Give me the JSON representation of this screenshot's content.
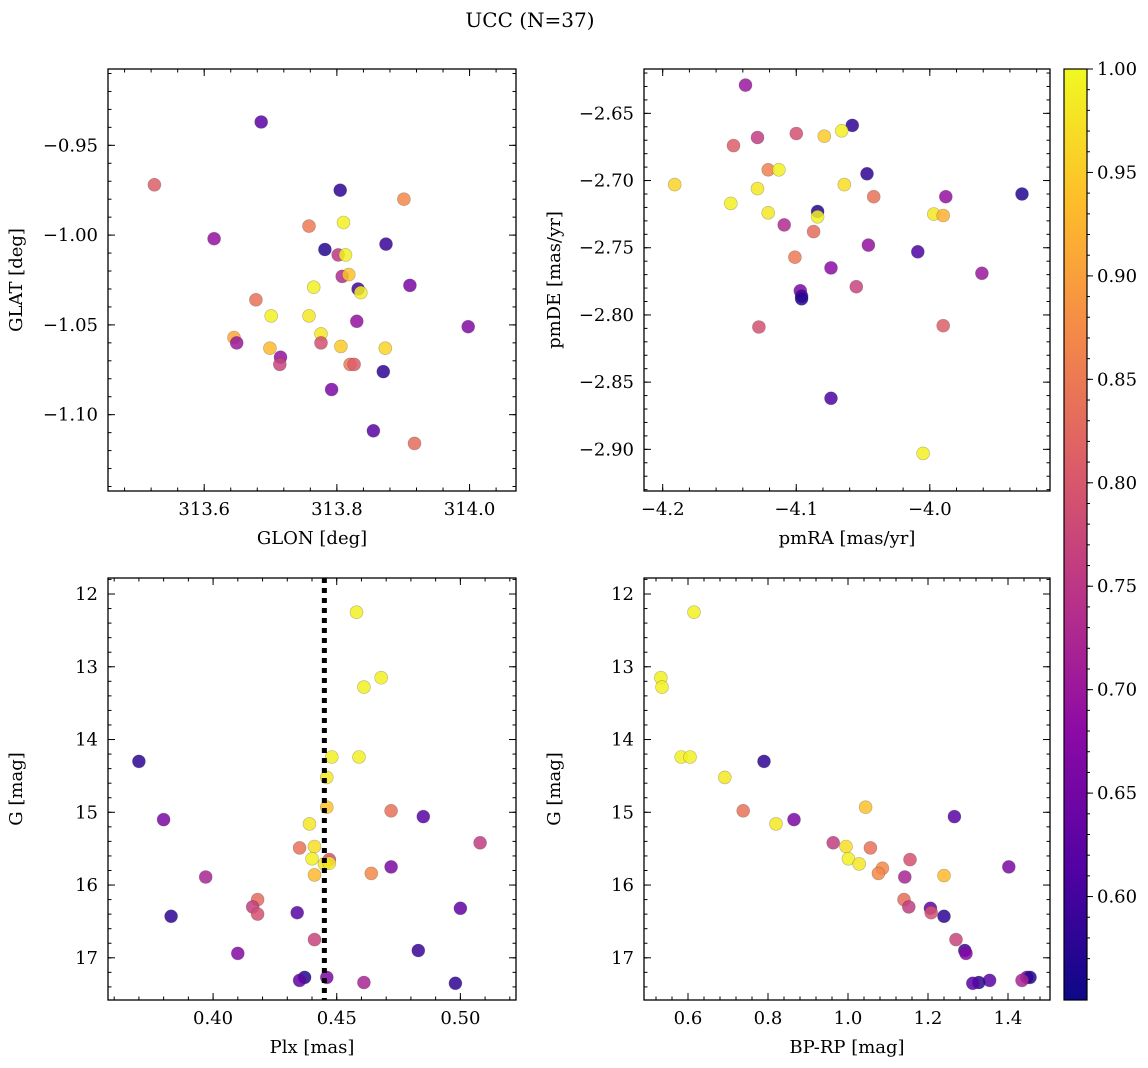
{
  "figure_title": "UCC (N=37)",
  "colormap": [
    "#0d0887",
    "#5302a3",
    "#8b0aa5",
    "#b83289",
    "#db5c68",
    "#f48849",
    "#febd2a",
    "#f0f921"
  ],
  "chart_data": [
    {
      "id": "glon-glat",
      "type": "scatter",
      "xlabel": "GLON [deg]",
      "ylabel": "GLAT [deg]",
      "xlim": [
        313.455,
        314.07
      ],
      "ylim": [
        -1.1425,
        -0.9075
      ],
      "y_inverted": false,
      "xticks": [
        313.6,
        313.8,
        314.0
      ],
      "xtick_labels": [
        "313.6",
        "313.8",
        "314.0"
      ],
      "yticks": [
        -0.95,
        -1.0,
        -1.05,
        -1.1
      ],
      "ytick_labels": [
        "−0.95",
        "−1.00",
        "−1.05",
        "−1.10"
      ],
      "points": [
        {
          "x": 313.686,
          "y": -0.937,
          "c": 0.62
        },
        {
          "x": 313.525,
          "y": -0.972,
          "c": 0.81
        },
        {
          "x": 313.805,
          "y": -0.975,
          "c": 0.58
        },
        {
          "x": 313.901,
          "y": -0.98,
          "c": 0.87
        },
        {
          "x": 313.758,
          "y": -0.995,
          "c": 0.85
        },
        {
          "x": 313.81,
          "y": -0.993,
          "c": 0.99
        },
        {
          "x": 313.615,
          "y": -1.002,
          "c": 0.69
        },
        {
          "x": 313.782,
          "y": -1.008,
          "c": 0.57
        },
        {
          "x": 313.874,
          "y": -1.005,
          "c": 0.59
        },
        {
          "x": 313.802,
          "y": -1.011,
          "c": 0.75
        },
        {
          "x": 313.813,
          "y": -1.011,
          "c": 0.99
        },
        {
          "x": 313.808,
          "y": -1.023,
          "c": 0.73
        },
        {
          "x": 313.818,
          "y": -1.022,
          "c": 0.94
        },
        {
          "x": 313.765,
          "y": -1.029,
          "c": 0.99
        },
        {
          "x": 313.832,
          "y": -1.03,
          "c": 0.6
        },
        {
          "x": 313.836,
          "y": -1.032,
          "c": 0.99
        },
        {
          "x": 313.91,
          "y": -1.028,
          "c": 0.66
        },
        {
          "x": 313.678,
          "y": -1.036,
          "c": 0.84
        },
        {
          "x": 313.701,
          "y": -1.045,
          "c": 0.99
        },
        {
          "x": 313.758,
          "y": -1.045,
          "c": 0.98
        },
        {
          "x": 313.83,
          "y": -1.048,
          "c": 0.69
        },
        {
          "x": 313.998,
          "y": -1.051,
          "c": 0.67
        },
        {
          "x": 313.776,
          "y": -1.055,
          "c": 0.98
        },
        {
          "x": 313.645,
          "y": -1.057,
          "c": 0.91
        },
        {
          "x": 313.649,
          "y": -1.06,
          "c": 0.7
        },
        {
          "x": 313.776,
          "y": -1.06,
          "c": 0.79
        },
        {
          "x": 313.806,
          "y": -1.062,
          "c": 0.95
        },
        {
          "x": 313.699,
          "y": -1.063,
          "c": 0.93
        },
        {
          "x": 313.873,
          "y": -1.063,
          "c": 0.96
        },
        {
          "x": 313.715,
          "y": -1.068,
          "c": 0.69
        },
        {
          "x": 313.714,
          "y": -1.072,
          "c": 0.77
        },
        {
          "x": 313.82,
          "y": -1.072,
          "c": 0.85
        },
        {
          "x": 313.826,
          "y": -1.072,
          "c": 0.81
        },
        {
          "x": 313.87,
          "y": -1.076,
          "c": 0.58
        },
        {
          "x": 313.792,
          "y": -1.086,
          "c": 0.66
        },
        {
          "x": 313.855,
          "y": -1.109,
          "c": 0.62
        },
        {
          "x": 313.917,
          "y": -1.116,
          "c": 0.83
        }
      ]
    },
    {
      "id": "pm",
      "type": "scatter",
      "xlabel": "pmRA [mas/yr]",
      "ylabel": "pmDE [mas/yr]",
      "xlim": [
        -4.214,
        -3.91
      ],
      "ylim": [
        -2.931,
        -2.617
      ],
      "y_inverted": false,
      "xticks": [
        -4.2,
        -4.1,
        -4.0
      ],
      "xtick_labels": [
        "−4.2",
        "−4.1",
        "−4.0"
      ],
      "yticks": [
        -2.65,
        -2.7,
        -2.75,
        -2.8,
        -2.85,
        -2.9
      ],
      "ytick_labels": [
        "−2.65",
        "−2.70",
        "−2.75",
        "−2.80",
        "−2.85",
        "−2.90"
      ],
      "points": [
        {
          "x": -4.138,
          "y": -2.629,
          "c": 0.7
        },
        {
          "x": -4.058,
          "y": -2.659,
          "c": 0.58
        },
        {
          "x": -4.066,
          "y": -2.663,
          "c": 0.99
        },
        {
          "x": -4.079,
          "y": -2.667,
          "c": 0.95
        },
        {
          "x": -4.1,
          "y": -2.665,
          "c": 0.79
        },
        {
          "x": -4.129,
          "y": -2.668,
          "c": 0.76
        },
        {
          "x": -4.147,
          "y": -2.674,
          "c": 0.81
        },
        {
          "x": -4.121,
          "y": -2.692,
          "c": 0.86
        },
        {
          "x": -4.113,
          "y": -2.692,
          "c": 0.99
        },
        {
          "x": -4.047,
          "y": -2.695,
          "c": 0.58
        },
        {
          "x": -4.191,
          "y": -2.703,
          "c": 0.96
        },
        {
          "x": -4.064,
          "y": -2.703,
          "c": 0.97
        },
        {
          "x": -4.129,
          "y": -2.706,
          "c": 0.98
        },
        {
          "x": -3.931,
          "y": -2.71,
          "c": 0.57
        },
        {
          "x": -4.042,
          "y": -2.712,
          "c": 0.84
        },
        {
          "x": -3.988,
          "y": -2.712,
          "c": 0.69
        },
        {
          "x": -4.149,
          "y": -2.717,
          "c": 0.99
        },
        {
          "x": -4.084,
          "y": -2.723,
          "c": 0.57
        },
        {
          "x": -4.121,
          "y": -2.724,
          "c": 0.98
        },
        {
          "x": -3.997,
          "y": -2.725,
          "c": 0.98
        },
        {
          "x": -3.99,
          "y": -2.726,
          "c": 0.92
        },
        {
          "x": -4.084,
          "y": -2.727,
          "c": 0.99
        },
        {
          "x": -4.109,
          "y": -2.733,
          "c": 0.73
        },
        {
          "x": -4.087,
          "y": -2.738,
          "c": 0.83
        },
        {
          "x": -4.046,
          "y": -2.748,
          "c": 0.69
        },
        {
          "x": -4.009,
          "y": -2.753,
          "c": 0.61
        },
        {
          "x": -4.101,
          "y": -2.757,
          "c": 0.85
        },
        {
          "x": -4.074,
          "y": -2.765,
          "c": 0.68
        },
        {
          "x": -3.961,
          "y": -2.769,
          "c": 0.7
        },
        {
          "x": -4.055,
          "y": -2.779,
          "c": 0.77
        },
        {
          "x": -4.097,
          "y": -2.782,
          "c": 0.66
        },
        {
          "x": -4.096,
          "y": -2.786,
          "c": 0.6
        },
        {
          "x": -4.096,
          "y": -2.788,
          "c": 0.57
        },
        {
          "x": -4.128,
          "y": -2.809,
          "c": 0.79
        },
        {
          "x": -3.99,
          "y": -2.808,
          "c": 0.81
        },
        {
          "x": -4.074,
          "y": -2.862,
          "c": 0.61
        },
        {
          "x": -4.005,
          "y": -2.903,
          "c": 0.99
        }
      ]
    },
    {
      "id": "plx-g",
      "type": "scatter",
      "xlabel": "Plx [mas]",
      "ylabel": "G [mag]",
      "xlim": [
        0.3575,
        0.5225
      ],
      "ylim": [
        17.58,
        11.78
      ],
      "y_inverted": true,
      "xticks": [
        0.4,
        0.45,
        0.5
      ],
      "xtick_labels": [
        "0.40",
        "0.45",
        "0.50"
      ],
      "yticks": [
        12,
        13,
        14,
        15,
        16,
        17
      ],
      "ytick_labels": [
        "12",
        "13",
        "14",
        "15",
        "16",
        "17"
      ],
      "vline": {
        "x": 0.445,
        "style": "dotted",
        "color": "#000000"
      },
      "points": [
        {
          "x": 0.458,
          "y": 12.25,
          "c": 0.99
        },
        {
          "x": 0.468,
          "y": 13.15,
          "c": 0.99
        },
        {
          "x": 0.461,
          "y": 13.28,
          "c": 0.99
        },
        {
          "x": 0.37,
          "y": 14.3,
          "c": 0.58
        },
        {
          "x": 0.448,
          "y": 14.24,
          "c": 0.99
        },
        {
          "x": 0.459,
          "y": 14.24,
          "c": 0.99
        },
        {
          "x": 0.446,
          "y": 14.52,
          "c": 0.98
        },
        {
          "x": 0.446,
          "y": 14.93,
          "c": 0.94
        },
        {
          "x": 0.472,
          "y": 14.98,
          "c": 0.84
        },
        {
          "x": 0.485,
          "y": 15.06,
          "c": 0.62
        },
        {
          "x": 0.38,
          "y": 15.1,
          "c": 0.66
        },
        {
          "x": 0.439,
          "y": 15.16,
          "c": 0.98
        },
        {
          "x": 0.508,
          "y": 15.42,
          "c": 0.76
        },
        {
          "x": 0.441,
          "y": 15.47,
          "c": 0.97
        },
        {
          "x": 0.435,
          "y": 15.49,
          "c": 0.84
        },
        {
          "x": 0.44,
          "y": 15.64,
          "c": 0.99
        },
        {
          "x": 0.447,
          "y": 15.65,
          "c": 0.79
        },
        {
          "x": 0.445,
          "y": 15.71,
          "c": 0.98
        },
        {
          "x": 0.472,
          "y": 15.75,
          "c": 0.66
        },
        {
          "x": 0.464,
          "y": 15.84,
          "c": 0.87
        },
        {
          "x": 0.441,
          "y": 15.86,
          "c": 0.93
        },
        {
          "x": 0.397,
          "y": 15.89,
          "c": 0.72
        },
        {
          "x": 0.418,
          "y": 16.2,
          "c": 0.83
        },
        {
          "x": 0.416,
          "y": 16.3,
          "c": 0.76
        },
        {
          "x": 0.5,
          "y": 16.32,
          "c": 0.63
        },
        {
          "x": 0.434,
          "y": 16.38,
          "c": 0.62
        },
        {
          "x": 0.418,
          "y": 16.4,
          "c": 0.79
        },
        {
          "x": 0.383,
          "y": 16.43,
          "c": 0.58
        },
        {
          "x": 0.441,
          "y": 16.75,
          "c": 0.77
        },
        {
          "x": 0.483,
          "y": 16.9,
          "c": 0.59
        },
        {
          "x": 0.41,
          "y": 16.94,
          "c": 0.67
        },
        {
          "x": 0.437,
          "y": 17.27,
          "c": 0.57
        },
        {
          "x": 0.446,
          "y": 17.27,
          "c": 0.66
        },
        {
          "x": 0.435,
          "y": 17.31,
          "c": 0.63
        },
        {
          "x": 0.461,
          "y": 17.34,
          "c": 0.72
        },
        {
          "x": 0.498,
          "y": 17.35,
          "c": 0.58
        },
        {
          "x": 0.447,
          "y": 15.7,
          "c": 0.98
        }
      ]
    },
    {
      "id": "cmd",
      "type": "scatter",
      "xlabel": "BP-RP [mag]",
      "ylabel": "G [mag]",
      "xlim": [
        0.49,
        1.505
      ],
      "ylim": [
        17.58,
        11.78
      ],
      "y_inverted": true,
      "xticks": [
        0.6,
        0.8,
        1.0,
        1.2,
        1.4
      ],
      "xtick_labels": [
        "0.6",
        "0.8",
        "1.0",
        "1.2",
        "1.4"
      ],
      "yticks": [
        12,
        13,
        14,
        15,
        16,
        17
      ],
      "ytick_labels": [
        "12",
        "13",
        "14",
        "15",
        "16",
        "17"
      ],
      "points": [
        {
          "x": 0.615,
          "y": 12.25,
          "c": 0.99
        },
        {
          "x": 0.532,
          "y": 13.15,
          "c": 0.99
        },
        {
          "x": 0.535,
          "y": 13.28,
          "c": 0.99
        },
        {
          "x": 0.583,
          "y": 14.24,
          "c": 0.99
        },
        {
          "x": 0.605,
          "y": 14.24,
          "c": 0.99
        },
        {
          "x": 0.79,
          "y": 14.3,
          "c": 0.58
        },
        {
          "x": 0.692,
          "y": 14.52,
          "c": 0.98
        },
        {
          "x": 0.738,
          "y": 14.98,
          "c": 0.84
        },
        {
          "x": 1.044,
          "y": 14.93,
          "c": 0.94
        },
        {
          "x": 1.266,
          "y": 15.06,
          "c": 0.62
        },
        {
          "x": 0.865,
          "y": 15.1,
          "c": 0.66
        },
        {
          "x": 0.82,
          "y": 15.16,
          "c": 0.98
        },
        {
          "x": 0.963,
          "y": 15.42,
          "c": 0.76
        },
        {
          "x": 0.995,
          "y": 15.47,
          "c": 0.97
        },
        {
          "x": 1.056,
          "y": 15.49,
          "c": 0.84
        },
        {
          "x": 1.001,
          "y": 15.64,
          "c": 0.99
        },
        {
          "x": 1.155,
          "y": 15.65,
          "c": 0.79
        },
        {
          "x": 1.028,
          "y": 15.71,
          "c": 0.98
        },
        {
          "x": 1.402,
          "y": 15.75,
          "c": 0.66
        },
        {
          "x": 1.086,
          "y": 15.77,
          "c": 0.87
        },
        {
          "x": 1.076,
          "y": 15.84,
          "c": 0.87
        },
        {
          "x": 1.142,
          "y": 15.89,
          "c": 0.72
        },
        {
          "x": 1.24,
          "y": 15.87,
          "c": 0.93
        },
        {
          "x": 1.14,
          "y": 16.2,
          "c": 0.83
        },
        {
          "x": 1.152,
          "y": 16.3,
          "c": 0.76
        },
        {
          "x": 1.206,
          "y": 16.32,
          "c": 0.63
        },
        {
          "x": 1.208,
          "y": 16.38,
          "c": 0.79
        },
        {
          "x": 1.24,
          "y": 16.43,
          "c": 0.58
        },
        {
          "x": 1.27,
          "y": 16.75,
          "c": 0.77
        },
        {
          "x": 1.292,
          "y": 16.9,
          "c": 0.59
        },
        {
          "x": 1.295,
          "y": 16.94,
          "c": 0.67
        },
        {
          "x": 1.447,
          "y": 17.27,
          "c": 0.66
        },
        {
          "x": 1.455,
          "y": 17.27,
          "c": 0.57
        },
        {
          "x": 1.435,
          "y": 17.31,
          "c": 0.72
        },
        {
          "x": 1.354,
          "y": 17.31,
          "c": 0.62
        },
        {
          "x": 1.327,
          "y": 17.34,
          "c": 0.58
        },
        {
          "x": 1.312,
          "y": 17.35,
          "c": 0.62
        }
      ]
    }
  ],
  "colorbar": {
    "min": 0.55,
    "max": 1.0,
    "ticks": [
      0.6,
      0.65,
      0.7,
      0.75,
      0.8,
      0.85,
      0.9,
      0.95,
      1.0
    ],
    "tick_labels": [
      "0.60",
      "0.65",
      "0.70",
      "0.75",
      "0.80",
      "0.85",
      "0.90",
      "0.95",
      "1.00"
    ]
  }
}
